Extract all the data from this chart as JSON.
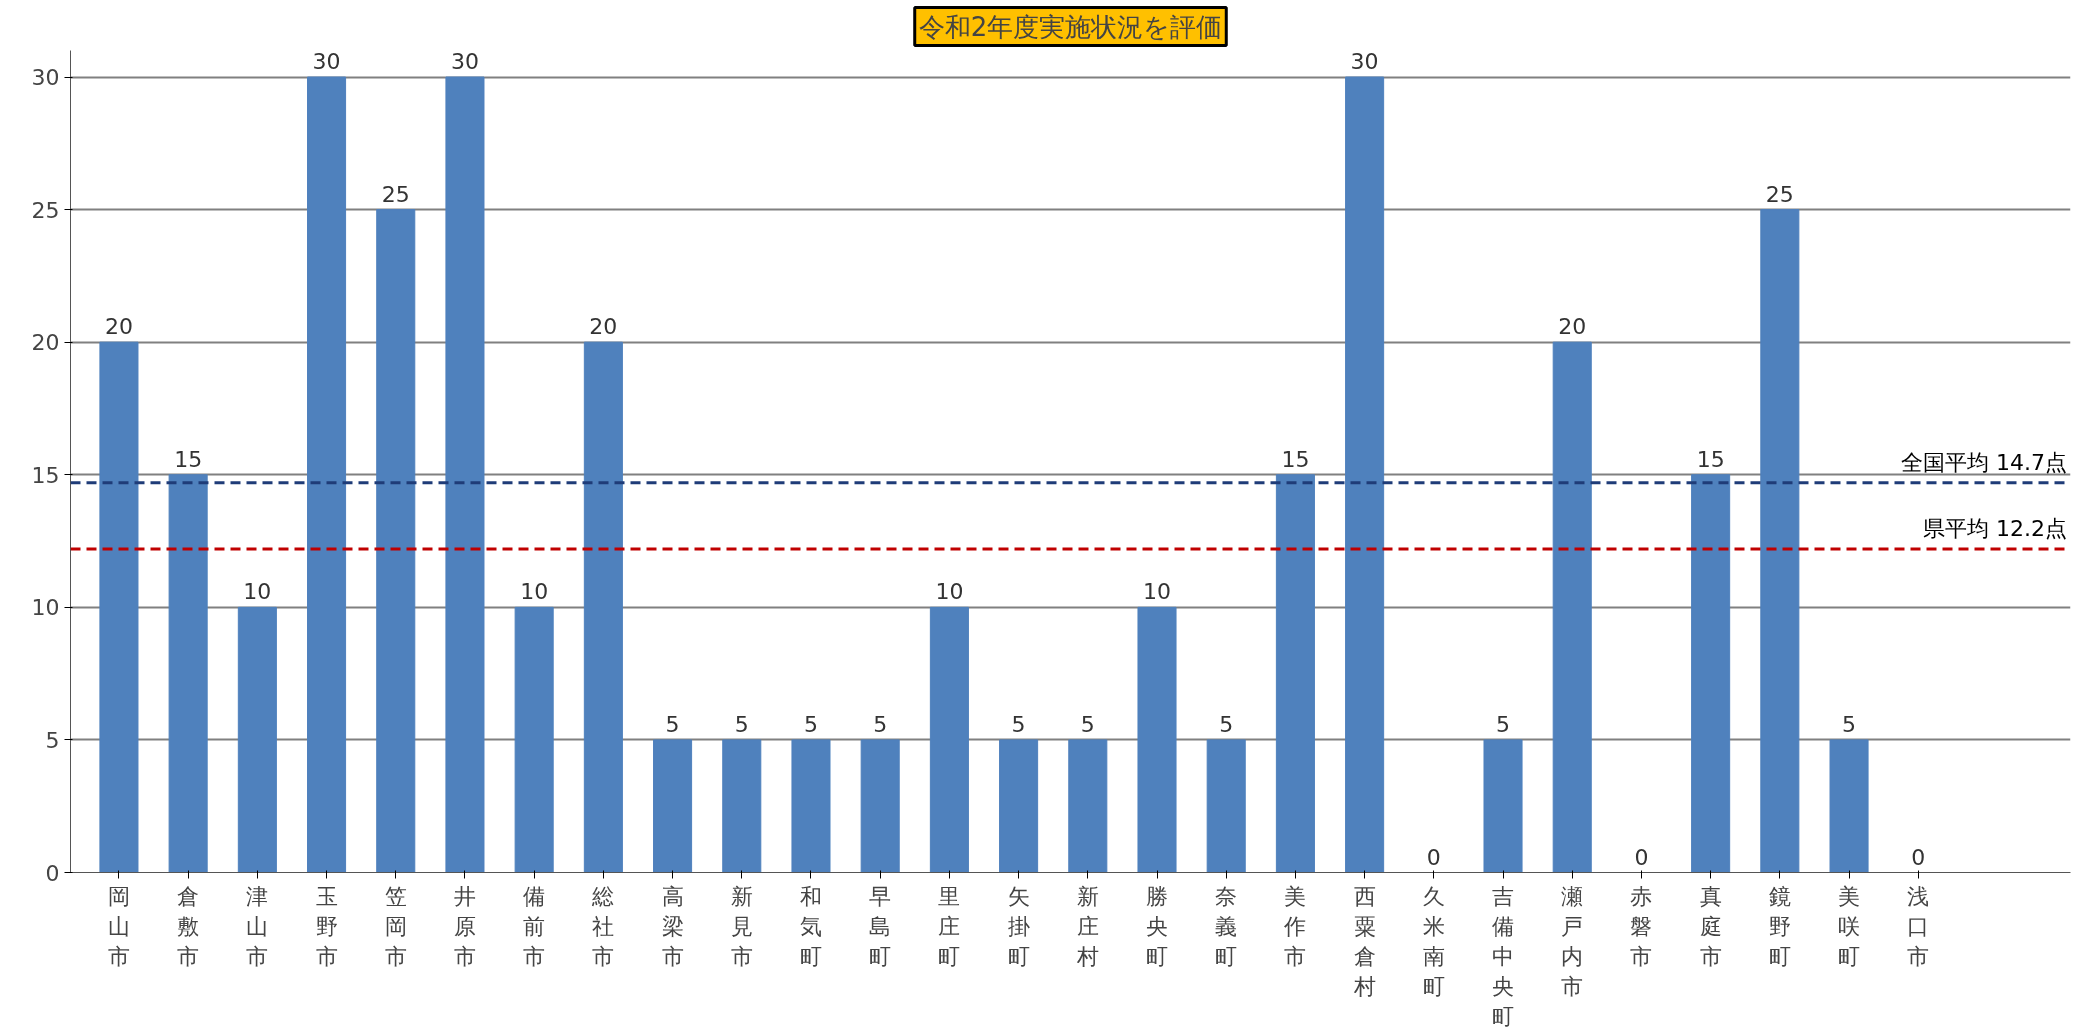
{
  "chart_data": {
    "type": "bar",
    "categories": [
      "岡山市",
      "倉敷市",
      "津山市",
      "玉野市",
      "笠岡市",
      "井原市",
      "備前市",
      "総社市",
      "高梁市",
      "新見市",
      "和気町",
      "早島町",
      "里庄町",
      "矢掛町",
      "新庄村",
      "勝央町",
      "奈義町",
      "美作市",
      "西粟倉村",
      "久米南町",
      "吉備中央町",
      "瀬戸内市",
      "赤磐市",
      "真庭市",
      "鏡野町",
      "美咲町",
      "浅口市"
    ],
    "values": [
      20,
      15,
      10,
      30,
      25,
      30,
      10,
      20,
      5,
      5,
      5,
      5,
      10,
      5,
      5,
      10,
      5,
      15,
      30,
      0,
      5,
      20,
      0,
      15,
      25,
      5,
      0
    ],
    "color": "#4f81bd",
    "ylim": [
      0,
      31
    ],
    "yticks": [
      0,
      5,
      10,
      15,
      20,
      25,
      30
    ],
    "grid": "y",
    "data_labels": true,
    "ref_lines": [
      {
        "axis": "y",
        "value": 14.7,
        "label": "全国平均 14.7点",
        "color": "#1f3c78",
        "line_style": "dashed"
      },
      {
        "axis": "y",
        "value": 12.2,
        "label": "県平均 12.2点",
        "color": "#c00000",
        "line_style": "dashed"
      }
    ],
    "annotations": [
      "令和2年度実施状況を評価"
    ]
  }
}
